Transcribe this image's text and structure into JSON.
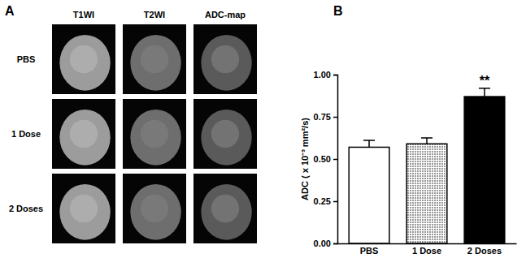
{
  "panel_a": {
    "label": "A",
    "columns": [
      "T1WI",
      "T2WI",
      "ADC-map"
    ],
    "rows": [
      "PBS",
      "1 Dose",
      "2 Doses"
    ]
  },
  "chart_data": {
    "type": "bar",
    "title": "B",
    "y_label": "ADC ( x 10⁻³ mm²/s)",
    "categories": [
      "PBS",
      "1 Dose",
      "2 Doses"
    ],
    "values": [
      0.57,
      0.59,
      0.87
    ],
    "errors": [
      0.04,
      0.035,
      0.05
    ],
    "colors": [
      "#ffffff",
      "#9a9a9a",
      "#000000"
    ],
    "ylim": [
      0,
      1.0
    ],
    "yticks": [
      {
        "value": 0,
        "label": "0.00"
      },
      {
        "value": 0.25,
        "label": "0.25"
      },
      {
        "value": 0.5,
        "label": "0.50"
      },
      {
        "value": 0.75,
        "label": "0.75"
      },
      {
        "value": 1.0,
        "label": "1.00"
      }
    ],
    "grid": false,
    "annotations": [
      {
        "text": "**",
        "category": "2 Doses"
      }
    ]
  }
}
